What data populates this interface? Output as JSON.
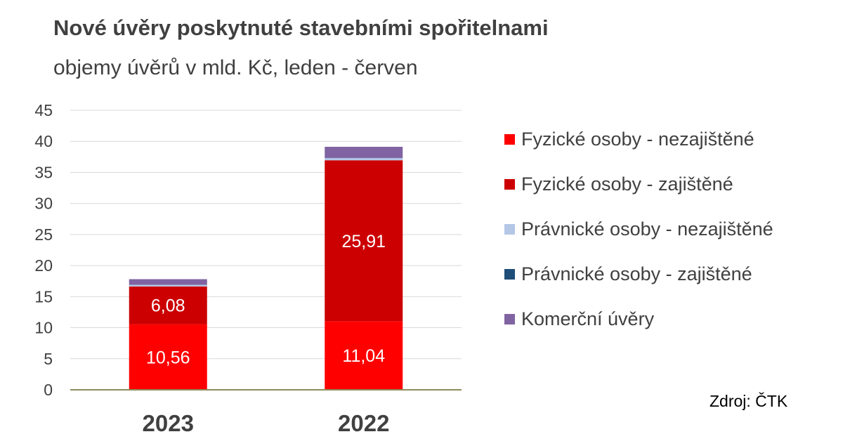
{
  "title": "Nové úvěry poskytnuté stavebními spořitelnami",
  "subtitle": "objemy úvěrů v mld. Kč, leden - červen",
  "source": "Zdroj: ČTK",
  "chart_data": {
    "type": "bar",
    "stacked": true,
    "categories": [
      "2023",
      "2022"
    ],
    "ylim": [
      0,
      45
    ],
    "yticks": [
      0,
      5,
      10,
      15,
      20,
      25,
      30,
      35,
      40,
      45
    ],
    "grid": true,
    "legend_position": "right",
    "series": [
      {
        "name": "Fyzické osoby - nezajištěné",
        "values": [
          10.56,
          11.04
        ],
        "color": "#ff0000",
        "labels": [
          "10,56",
          "11,04"
        ]
      },
      {
        "name": "Fyzické osoby - zajištěné",
        "values": [
          6.08,
          25.91
        ],
        "color": "#cc0000",
        "labels": [
          "6,08",
          "25,91"
        ]
      },
      {
        "name": "Právnické osoby - nezajištěné",
        "values": [
          0.25,
          0.35
        ],
        "color": "#b4c7e7"
      },
      {
        "name": "Právnické osoby - zajištěné",
        "values": [
          0.02,
          0.02
        ],
        "color": "#1f4e79"
      },
      {
        "name": "Komerční úvěry",
        "values": [
          0.9,
          1.8
        ],
        "color": "#8064a2"
      }
    ]
  }
}
